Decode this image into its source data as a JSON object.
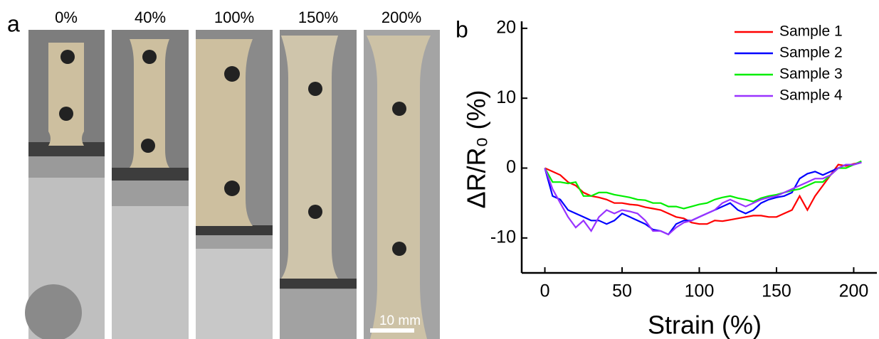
{
  "figure": {
    "panel_a": {
      "label": "a",
      "strains": [
        "0%",
        "40%",
        "100%",
        "150%",
        "200%"
      ],
      "scale_bar": "10 mm"
    }
  },
  "chart_data": {
    "type": "line",
    "panel_label": "b",
    "x_label": "Strain (%)",
    "y_label": "ΔR/R₀ (%)",
    "x": [
      0,
      5,
      10,
      15,
      20,
      25,
      30,
      35,
      40,
      45,
      50,
      55,
      60,
      65,
      70,
      75,
      80,
      85,
      90,
      95,
      100,
      105,
      110,
      115,
      120,
      125,
      130,
      135,
      140,
      145,
      150,
      155,
      160,
      165,
      170,
      175,
      180,
      185,
      190,
      195,
      200,
      205
    ],
    "series": [
      {
        "name": "Sample 1",
        "color": "#ff0000",
        "values": [
          0,
          -0.5,
          -1,
          -2,
          -2.5,
          -3.5,
          -4,
          -4.2,
          -4.5,
          -5,
          -5,
          -5.2,
          -5.3,
          -5.6,
          -5.8,
          -6,
          -6.5,
          -7,
          -7.2,
          -7.8,
          -8,
          -8,
          -7.5,
          -7.6,
          -7.4,
          -7.2,
          -7,
          -6.8,
          -6.8,
          -7,
          -7,
          -6.5,
          -6,
          -4,
          -6,
          -4,
          -2.5,
          -1,
          0.5,
          0.3,
          0.6,
          0.8
        ]
      },
      {
        "name": "Sample 2",
        "color": "#0000ff",
        "values": [
          0,
          -4,
          -4.5,
          -6,
          -6.5,
          -7,
          -7.5,
          -7.5,
          -8,
          -7.5,
          -6.5,
          -7,
          -7.5,
          -8,
          -8.8,
          -9,
          -9.5,
          -8,
          -7.5,
          -7.5,
          -7,
          -6.5,
          -6,
          -5.5,
          -5,
          -6,
          -6.5,
          -6,
          -5,
          -4.5,
          -4.2,
          -4,
          -3.5,
          -1.5,
          -0.8,
          -0.5,
          -1,
          -0.5,
          0,
          0.5,
          0.5,
          0.8
        ]
      },
      {
        "name": "Sample 3",
        "color": "#00ee00",
        "values": [
          0,
          -2,
          -2,
          -2.2,
          -2,
          -4,
          -4,
          -3.5,
          -3.5,
          -3.8,
          -4,
          -4.2,
          -4.5,
          -4.6,
          -5,
          -5,
          -5.5,
          -5.5,
          -5.8,
          -5.5,
          -5.2,
          -5,
          -4.5,
          -4.2,
          -4,
          -4.3,
          -4.5,
          -4.8,
          -4.3,
          -4,
          -3.8,
          -3.5,
          -3.2,
          -3,
          -2.5,
          -2,
          -2,
          -1,
          0,
          0,
          0.5,
          1
        ]
      },
      {
        "name": "Sample 4",
        "color": "#9933ff",
        "values": [
          0,
          -3,
          -5,
          -7,
          -8.5,
          -7.5,
          -9,
          -7,
          -6,
          -6.5,
          -6,
          -6.2,
          -6.5,
          -7.5,
          -9,
          -9,
          -9.5,
          -8.5,
          -7.8,
          -7.5,
          -7,
          -6.5,
          -6,
          -5,
          -4.5,
          -5,
          -5.5,
          -5,
          -4.5,
          -4.2,
          -4,
          -3.5,
          -3,
          -2.5,
          -2,
          -1.5,
          -1.5,
          -1,
          0,
          0.5,
          0.5,
          0.8
        ]
      }
    ],
    "xlim": [
      -15,
      215
    ],
    "ylim": [
      -15,
      21
    ],
    "xticks": [
      0,
      50,
      100,
      150,
      200
    ],
    "yticks": [
      -10,
      0,
      10,
      20
    ],
    "legend": "upper right",
    "grid": false
  }
}
